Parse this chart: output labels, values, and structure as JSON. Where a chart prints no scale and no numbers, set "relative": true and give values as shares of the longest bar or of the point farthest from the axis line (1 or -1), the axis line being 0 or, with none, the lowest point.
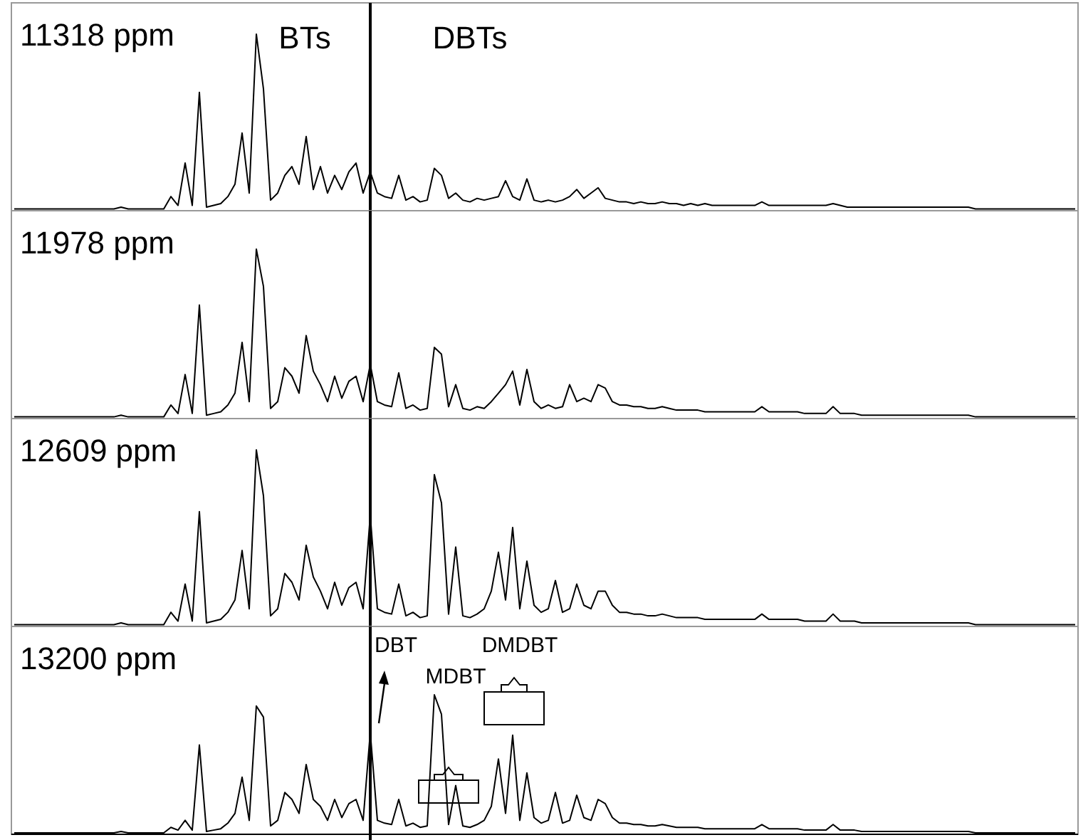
{
  "chart_data": [
    {
      "type": "line",
      "relative": true,
      "title": "11318 ppm",
      "annotations": [
        "BTs",
        "DBTs"
      ],
      "categories": [
        null,
        null,
        null,
        null,
        null,
        null,
        null,
        null,
        null,
        null,
        null,
        null,
        null,
        null,
        null,
        null,
        null,
        null,
        null,
        null,
        null,
        null,
        null,
        null,
        null,
        null,
        null,
        null,
        null,
        null,
        null,
        null,
        null,
        null,
        null,
        null,
        null,
        null,
        null,
        null,
        null,
        null,
        null,
        null,
        null,
        null,
        null,
        null,
        null,
        null,
        null,
        null,
        null,
        null,
        null,
        null,
        null,
        null,
        null,
        null,
        null,
        null,
        null,
        null,
        null,
        null,
        null,
        null,
        null,
        null,
        null,
        null,
        null,
        null,
        null,
        null,
        null,
        null,
        null,
        null,
        null,
        null,
        null,
        null,
        null,
        null,
        null,
        null,
        null,
        null,
        null,
        null,
        null,
        null,
        null,
        null,
        null,
        null,
        null,
        null,
        null,
        null,
        null,
        null,
        null,
        null,
        null,
        null,
        null,
        null,
        null,
        null,
        null,
        null,
        null,
        null,
        null,
        null,
        null,
        null,
        null,
        null,
        null,
        null,
        null,
        null,
        null,
        null,
        null,
        null,
        null,
        null,
        null,
        null,
        null,
        null,
        null,
        null,
        null,
        null,
        null,
        null,
        null,
        null,
        null,
        null,
        null,
        null,
        null,
        null
      ],
      "series": [
        {
          "color": "#000000",
          "values": [
            0.01,
            0.01,
            0.01,
            0.01,
            0.01,
            0.01,
            0.01,
            0.01,
            0.01,
            0.01,
            0.01,
            0.01,
            0.01,
            0.01,
            0.01,
            0.02,
            0.01,
            0.01,
            0.01,
            0.01,
            0.01,
            0.01,
            0.08,
            0.03,
            0.27,
            0.03,
            0.67,
            0.02,
            0.03,
            0.04,
            0.08,
            0.15,
            0.44,
            0.1,
            1,
            0.69,
            0.06,
            0.1,
            0.2,
            0.25,
            0.15,
            0.42,
            0.12,
            0.25,
            0.1,
            0.2,
            0.12,
            0.22,
            0.27,
            0.1,
            0.22,
            0.1,
            0.08,
            0.07,
            0.2,
            0.06,
            0.08,
            0.05,
            0.06,
            0.24,
            0.2,
            0.07,
            0.1,
            0.06,
            0.05,
            0.07,
            0.06,
            0.07,
            0.08,
            0.17,
            0.08,
            0.06,
            0.18,
            0.06,
            0.05,
            0.06,
            0.05,
            0.06,
            0.08,
            0.12,
            0.07,
            0.1,
            0.13,
            0.07,
            0.06,
            0.05,
            0.05,
            0.04,
            0.05,
            0.04,
            0.04,
            0.05,
            0.04,
            0.04,
            0.03,
            0.04,
            0.03,
            0.04,
            0.03,
            0.03,
            0.03,
            0.03,
            0.03,
            0.03,
            0.03,
            0.05,
            0.03,
            0.03,
            0.03,
            0.03,
            0.03,
            0.03,
            0.03,
            0.03,
            0.03,
            0.04,
            0.03,
            0.02,
            0.02,
            0.02,
            0.02,
            0.02,
            0.02,
            0.02,
            0.02,
            0.02,
            0.02,
            0.02,
            0.02,
            0.02,
            0.02,
            0.02,
            0.02,
            0.02,
            0.02,
            0.01,
            0.01,
            0.01,
            0.01,
            0.01,
            0.01,
            0.01,
            0.01,
            0.01,
            0.01,
            0.01,
            0.01,
            0.01,
            0.01,
            0.01
          ]
        }
      ]
    },
    {
      "type": "line",
      "relative": true,
      "title": "11978 ppm",
      "categories": [
        null,
        null,
        null,
        null,
        null,
        null,
        null,
        null,
        null,
        null,
        null,
        null,
        null,
        null,
        null,
        null,
        null,
        null,
        null,
        null,
        null,
        null,
        null,
        null,
        null,
        null,
        null,
        null,
        null,
        null,
        null,
        null,
        null,
        null,
        null,
        null,
        null,
        null,
        null,
        null,
        null,
        null,
        null,
        null,
        null,
        null,
        null,
        null,
        null,
        null,
        null,
        null,
        null,
        null,
        null,
        null,
        null,
        null,
        null,
        null,
        null,
        null,
        null,
        null,
        null,
        null,
        null,
        null,
        null,
        null,
        null,
        null,
        null,
        null,
        null,
        null,
        null,
        null,
        null,
        null,
        null,
        null,
        null,
        null,
        null,
        null,
        null,
        null,
        null,
        null,
        null,
        null,
        null,
        null,
        null,
        null,
        null,
        null,
        null,
        null,
        null,
        null,
        null,
        null,
        null,
        null,
        null,
        null,
        null,
        null,
        null,
        null,
        null,
        null,
        null,
        null,
        null,
        null,
        null,
        null,
        null,
        null,
        null,
        null,
        null,
        null,
        null,
        null,
        null,
        null,
        null,
        null,
        null,
        null,
        null,
        null,
        null,
        null,
        null,
        null,
        null,
        null,
        null,
        null,
        null,
        null,
        null,
        null,
        null,
        null
      ],
      "series": [
        {
          "color": "#000000",
          "values": [
            0.01,
            0.01,
            0.01,
            0.01,
            0.01,
            0.01,
            0.01,
            0.01,
            0.01,
            0.01,
            0.01,
            0.01,
            0.01,
            0.01,
            0.01,
            0.02,
            0.01,
            0.01,
            0.01,
            0.01,
            0.01,
            0.01,
            0.08,
            0.03,
            0.26,
            0.03,
            0.67,
            0.02,
            0.03,
            0.04,
            0.08,
            0.15,
            0.45,
            0.1,
            1,
            0.78,
            0.06,
            0.1,
            0.3,
            0.25,
            0.15,
            0.49,
            0.28,
            0.2,
            0.1,
            0.25,
            0.12,
            0.22,
            0.25,
            0.1,
            0.32,
            0.1,
            0.08,
            0.07,
            0.27,
            0.06,
            0.08,
            0.05,
            0.06,
            0.42,
            0.38,
            0.07,
            0.2,
            0.06,
            0.05,
            0.07,
            0.06,
            0.1,
            0.15,
            0.2,
            0.28,
            0.08,
            0.29,
            0.1,
            0.06,
            0.08,
            0.06,
            0.07,
            0.2,
            0.1,
            0.12,
            0.1,
            0.2,
            0.18,
            0.1,
            0.08,
            0.08,
            0.07,
            0.07,
            0.06,
            0.06,
            0.07,
            0.06,
            0.05,
            0.05,
            0.05,
            0.05,
            0.04,
            0.04,
            0.04,
            0.04,
            0.04,
            0.04,
            0.04,
            0.04,
            0.07,
            0.04,
            0.04,
            0.04,
            0.04,
            0.04,
            0.03,
            0.03,
            0.03,
            0.03,
            0.07,
            0.03,
            0.03,
            0.03,
            0.02,
            0.02,
            0.02,
            0.02,
            0.02,
            0.02,
            0.02,
            0.02,
            0.02,
            0.02,
            0.02,
            0.02,
            0.02,
            0.02,
            0.02,
            0.02,
            0.01,
            0.01,
            0.01,
            0.01,
            0.01,
            0.01,
            0.01,
            0.01,
            0.01,
            0.01,
            0.01,
            0.01,
            0.01,
            0.01,
            0.01
          ]
        }
      ]
    },
    {
      "type": "line",
      "relative": true,
      "title": "12609 ppm",
      "categories": [
        null,
        null,
        null,
        null,
        null,
        null,
        null,
        null,
        null,
        null,
        null,
        null,
        null,
        null,
        null,
        null,
        null,
        null,
        null,
        null,
        null,
        null,
        null,
        null,
        null,
        null,
        null,
        null,
        null,
        null,
        null,
        null,
        null,
        null,
        null,
        null,
        null,
        null,
        null,
        null,
        null,
        null,
        null,
        null,
        null,
        null,
        null,
        null,
        null,
        null,
        null,
        null,
        null,
        null,
        null,
        null,
        null,
        null,
        null,
        null,
        null,
        null,
        null,
        null,
        null,
        null,
        null,
        null,
        null,
        null,
        null,
        null,
        null,
        null,
        null,
        null,
        null,
        null,
        null,
        null,
        null,
        null,
        null,
        null,
        null,
        null,
        null,
        null,
        null,
        null,
        null,
        null,
        null,
        null,
        null,
        null,
        null,
        null,
        null,
        null,
        null,
        null,
        null,
        null,
        null,
        null,
        null,
        null,
        null,
        null,
        null,
        null,
        null,
        null,
        null,
        null,
        null,
        null,
        null,
        null,
        null,
        null,
        null,
        null,
        null,
        null,
        null,
        null,
        null,
        null,
        null,
        null,
        null,
        null,
        null,
        null,
        null,
        null,
        null,
        null,
        null,
        null,
        null,
        null,
        null,
        null,
        null,
        null,
        null,
        null
      ],
      "series": [
        {
          "color": "#000000",
          "values": [
            0.01,
            0.01,
            0.01,
            0.01,
            0.01,
            0.01,
            0.01,
            0.01,
            0.01,
            0.01,
            0.01,
            0.01,
            0.01,
            0.01,
            0.01,
            0.02,
            0.01,
            0.01,
            0.01,
            0.01,
            0.01,
            0.01,
            0.08,
            0.03,
            0.24,
            0.03,
            0.65,
            0.02,
            0.03,
            0.04,
            0.08,
            0.15,
            0.43,
            0.1,
            1,
            0.74,
            0.06,
            0.1,
            0.3,
            0.25,
            0.15,
            0.46,
            0.28,
            0.2,
            0.1,
            0.25,
            0.12,
            0.22,
            0.25,
            0.1,
            0.63,
            0.1,
            0.08,
            0.07,
            0.24,
            0.06,
            0.08,
            0.05,
            0.06,
            0.86,
            0.7,
            0.07,
            0.45,
            0.06,
            0.05,
            0.07,
            0.1,
            0.2,
            0.42,
            0.15,
            0.56,
            0.1,
            0.37,
            0.12,
            0.08,
            0.1,
            0.26,
            0.08,
            0.1,
            0.24,
            0.12,
            0.1,
            0.2,
            0.2,
            0.12,
            0.08,
            0.08,
            0.07,
            0.07,
            0.06,
            0.06,
            0.07,
            0.06,
            0.05,
            0.05,
            0.05,
            0.05,
            0.04,
            0.04,
            0.04,
            0.04,
            0.04,
            0.04,
            0.04,
            0.04,
            0.07,
            0.04,
            0.04,
            0.04,
            0.04,
            0.04,
            0.03,
            0.03,
            0.03,
            0.03,
            0.07,
            0.03,
            0.03,
            0.03,
            0.02,
            0.02,
            0.02,
            0.02,
            0.02,
            0.02,
            0.02,
            0.02,
            0.02,
            0.02,
            0.02,
            0.02,
            0.02,
            0.02,
            0.02,
            0.02,
            0.01,
            0.01,
            0.01,
            0.01,
            0.01,
            0.01,
            0.01,
            0.01,
            0.01,
            0.01,
            0.01,
            0.01,
            0.01,
            0.01,
            0.01
          ]
        }
      ]
    },
    {
      "type": "line",
      "relative": true,
      "title": "13200 ppm",
      "annotations": [
        "DBT",
        "MDBT",
        "DMDBT"
      ],
      "categories": [
        null,
        null,
        null,
        null,
        null,
        null,
        null,
        null,
        null,
        null,
        null,
        null,
        null,
        null,
        null,
        null,
        null,
        null,
        null,
        null,
        null,
        null,
        null,
        null,
        null,
        null,
        null,
        null,
        null,
        null,
        null,
        null,
        null,
        null,
        null,
        null,
        null,
        null,
        null,
        null,
        null,
        null,
        null,
        null,
        null,
        null,
        null,
        null,
        null,
        null,
        null,
        null,
        null,
        null,
        null,
        null,
        null,
        null,
        null,
        null,
        null,
        null,
        null,
        null,
        null,
        null,
        null,
        null,
        null,
        null,
        null,
        null,
        null,
        null,
        null,
        null,
        null,
        null,
        null,
        null,
        null,
        null,
        null,
        null,
        null,
        null,
        null,
        null,
        null,
        null,
        null,
        null,
        null,
        null,
        null,
        null,
        null,
        null,
        null,
        null,
        null,
        null,
        null,
        null,
        null,
        null,
        null,
        null,
        null,
        null,
        null,
        null,
        null,
        null,
        null,
        null,
        null,
        null,
        null,
        null,
        null,
        null,
        null,
        null,
        null,
        null,
        null,
        null,
        null,
        null,
        null,
        null,
        null,
        null,
        null,
        null,
        null,
        null,
        null,
        null,
        null,
        null,
        null,
        null,
        null,
        null,
        null,
        null,
        null,
        null
      ],
      "series": [
        {
          "color": "#000000",
          "values": [
            0.01,
            0.01,
            0.01,
            0.01,
            0.01,
            0.01,
            0.01,
            0.01,
            0.01,
            0.01,
            0.01,
            0.01,
            0.01,
            0.01,
            0.01,
            0.02,
            0.01,
            0.01,
            0.01,
            0.01,
            0.01,
            0.01,
            0.05,
            0.03,
            0.1,
            0.03,
            0.64,
            0.02,
            0.03,
            0.04,
            0.08,
            0.15,
            0.41,
            0.1,
            0.92,
            0.84,
            0.06,
            0.1,
            0.3,
            0.25,
            0.15,
            0.5,
            0.25,
            0.2,
            0.1,
            0.25,
            0.12,
            0.22,
            0.25,
            0.1,
            0.73,
            0.1,
            0.08,
            0.07,
            0.25,
            0.06,
            0.08,
            0.05,
            0.06,
            1,
            0.86,
            0.07,
            0.35,
            0.06,
            0.05,
            0.07,
            0.1,
            0.2,
            0.54,
            0.15,
            0.71,
            0.1,
            0.44,
            0.12,
            0.08,
            0.1,
            0.3,
            0.08,
            0.1,
            0.28,
            0.12,
            0.1,
            0.25,
            0.22,
            0.12,
            0.08,
            0.08,
            0.07,
            0.07,
            0.06,
            0.06,
            0.07,
            0.06,
            0.05,
            0.05,
            0.05,
            0.05,
            0.04,
            0.04,
            0.04,
            0.04,
            0.04,
            0.04,
            0.04,
            0.04,
            0.07,
            0.04,
            0.04,
            0.04,
            0.04,
            0.04,
            0.03,
            0.03,
            0.03,
            0.03,
            0.07,
            0.03,
            0.03,
            0.03,
            0.02,
            0.02,
            0.02,
            0.02,
            0.02,
            0.02,
            0.02,
            0.02,
            0.02,
            0.02,
            0.02,
            0.02,
            0.02,
            0.02,
            0.02,
            0.02,
            0.01,
            0.01,
            0.01,
            0.01,
            0.01,
            0.01,
            0.01,
            0.01,
            0.01,
            0.01,
            0.01,
            0.01,
            0.01,
            0.01,
            0.01
          ]
        }
      ]
    }
  ]
}
